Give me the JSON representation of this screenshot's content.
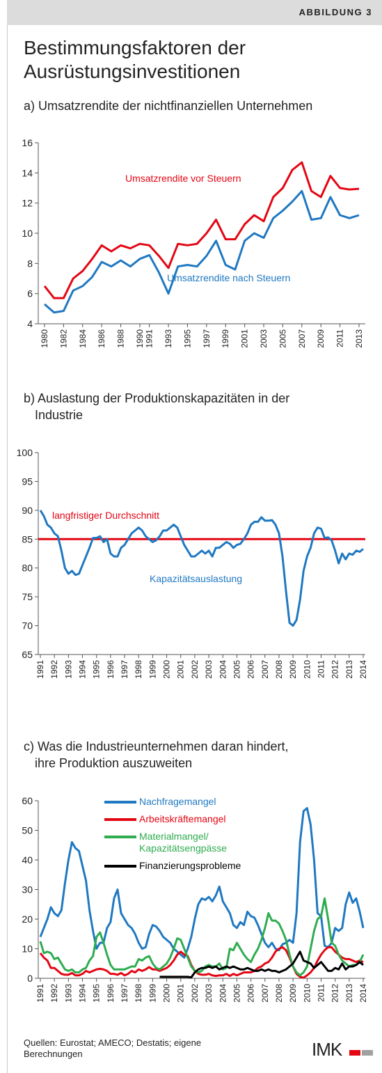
{
  "header": {
    "label": "ABBILDUNG 3",
    "title": "Bestimmungsfaktoren der\nAusrüstungsinvestitionen"
  },
  "chart_data": [
    {
      "type": "line",
      "title": "a) Umsatzrendite der nichtfinanziellen Unternehmen",
      "categories": [
        1980,
        null,
        1982,
        null,
        1984,
        null,
        1986,
        null,
        1988,
        null,
        1990,
        1991,
        null,
        1993,
        null,
        1995,
        null,
        1997,
        null,
        1999,
        null,
        2001,
        null,
        2003,
        null,
        2005,
        null,
        2007,
        null,
        2009,
        null,
        2011,
        null,
        2013
      ],
      "series": [
        {
          "name": "Umsatzrendite vor Steuern",
          "color": "#e30613",
          "values": [
            6.5,
            5.7,
            5.7,
            7.0,
            7.5,
            8.3,
            9.2,
            8.8,
            9.2,
            9.0,
            9.3,
            9.2,
            8.5,
            7.7,
            9.3,
            9.2,
            9.3,
            10.0,
            10.9,
            9.6,
            9.6,
            10.6,
            11.2,
            10.8,
            12.4,
            13.0,
            14.2,
            14.7,
            12.8,
            12.4,
            13.8,
            13.0,
            12.9,
            12.95
          ]
        },
        {
          "name": "Umsatzrendite nach Steuern",
          "color": "#1f78c1",
          "values": [
            5.3,
            4.75,
            4.85,
            6.2,
            6.5,
            7.1,
            8.1,
            7.8,
            8.2,
            7.8,
            8.3,
            8.55,
            7.4,
            6.0,
            7.8,
            7.9,
            7.8,
            8.5,
            9.5,
            7.9,
            7.6,
            9.5,
            10.0,
            9.7,
            11.0,
            11.5,
            12.1,
            12.8,
            10.9,
            11.0,
            12.4,
            11.2,
            11.0,
            11.2
          ]
        }
      ],
      "ylim": [
        4,
        16
      ],
      "yticks": [
        4,
        6,
        8,
        10,
        12,
        14,
        16
      ],
      "grid": false
    },
    {
      "type": "line",
      "title": "b) Auslastung der Produktionskapazitäten in der\nIndustrie",
      "categories": [
        1991,
        null,
        null,
        null,
        1992,
        null,
        null,
        null,
        1993,
        null,
        null,
        null,
        1994,
        null,
        null,
        null,
        1995,
        null,
        null,
        null,
        1996,
        null,
        null,
        null,
        1997,
        null,
        null,
        null,
        1998,
        null,
        null,
        null,
        1999,
        null,
        null,
        null,
        2000,
        null,
        null,
        null,
        2001,
        null,
        null,
        null,
        2002,
        null,
        null,
        null,
        2003,
        null,
        null,
        null,
        2004,
        null,
        null,
        null,
        2005,
        null,
        null,
        null,
        2006,
        null,
        null,
        null,
        2007,
        null,
        null,
        null,
        2008,
        null,
        null,
        null,
        2009,
        null,
        null,
        null,
        2010,
        null,
        null,
        null,
        2011,
        null,
        null,
        null,
        2012,
        null,
        null,
        null,
        2013,
        null,
        null,
        null,
        2014
      ],
      "series": [
        {
          "name": "Kapazitätsauslastung",
          "color": "#1f78c1",
          "values": [
            90,
            89,
            87.5,
            87,
            86,
            85.5,
            83,
            80,
            79,
            79.5,
            78.8,
            79,
            80.5,
            82,
            83.5,
            85.2,
            85.2,
            85.5,
            84.5,
            85,
            82.5,
            82,
            82,
            83.5,
            84,
            85,
            86,
            86.5,
            87,
            86.5,
            85.5,
            85,
            84.5,
            84.8,
            85.5,
            86.5,
            86.5,
            87,
            87.5,
            87,
            85.5,
            84,
            83,
            82,
            82,
            82.5,
            83,
            82.5,
            83,
            82,
            83.5,
            83.5,
            84,
            84.5,
            84.2,
            83.5,
            84,
            84.2,
            85,
            86,
            87.5,
            88,
            88,
            88.8,
            88.2,
            88.2,
            88.3,
            87.5,
            86,
            82,
            76,
            70.5,
            70,
            71,
            74.5,
            79.5,
            82,
            83.5,
            86,
            87,
            86.8,
            85.2,
            85.3,
            84.8,
            83,
            80.8,
            82.5,
            81.5,
            82.5,
            82.3,
            83,
            82.8,
            83.3
          ]
        }
      ],
      "reference_line": {
        "name": "langfristiger Durchschnitt",
        "value": 85,
        "color": "#e30613"
      },
      "ylim": [
        65,
        100
      ],
      "yticks": [
        65,
        70,
        75,
        80,
        85,
        90,
        95,
        100
      ],
      "grid": false
    },
    {
      "type": "line",
      "title": "c) Was die Industrieunternehmen daran hindert,\nihre Produktion auszuweiten",
      "categories": [
        1991,
        null,
        null,
        null,
        1992,
        null,
        null,
        null,
        1993,
        null,
        null,
        null,
        1994,
        null,
        null,
        null,
        1995,
        null,
        null,
        null,
        1996,
        null,
        null,
        null,
        1997,
        null,
        null,
        null,
        1998,
        null,
        null,
        null,
        1999,
        null,
        null,
        null,
        2000,
        null,
        null,
        null,
        2001,
        null,
        null,
        null,
        2002,
        null,
        null,
        null,
        2003,
        null,
        null,
        null,
        2004,
        null,
        null,
        null,
        2005,
        null,
        null,
        null,
        2006,
        null,
        null,
        null,
        2007,
        null,
        null,
        null,
        2008,
        null,
        null,
        null,
        2009,
        null,
        null,
        null,
        2010,
        null,
        null,
        null,
        2011,
        null,
        null,
        null,
        2012,
        null,
        null,
        null,
        2013,
        null,
        null,
        null,
        2014
      ],
      "series": [
        {
          "name": "Nachfragemangel",
          "color": "#1f78c1",
          "values": [
            14,
            17,
            20,
            24,
            22,
            21,
            23,
            32,
            40,
            46,
            44,
            43,
            38,
            33,
            23,
            16,
            10,
            12,
            12,
            17,
            19,
            27,
            30,
            22,
            20,
            18,
            17,
            15,
            12,
            10,
            10.5,
            15,
            18,
            17.5,
            16,
            14,
            13,
            12,
            10,
            9,
            8,
            7,
            10,
            14,
            20,
            25,
            27,
            26.5,
            27.5,
            26,
            28,
            31,
            26,
            24,
            22,
            18,
            17,
            19,
            18,
            22.5,
            21,
            20.5,
            18,
            15,
            12,
            10.5,
            12,
            10,
            9.5,
            11.5,
            12,
            13,
            12,
            22,
            46,
            56.5,
            57.5,
            52,
            40,
            22,
            21,
            11,
            10.5,
            12,
            17,
            16,
            17,
            25,
            29,
            25.5,
            27,
            22.5,
            17
          ]
        },
        {
          "name": "Arbeitskräftemangel",
          "color": "#e30613",
          "values": [
            8.5,
            7,
            6,
            3.5,
            3.5,
            2.5,
            1.5,
            1.2,
            1.2,
            1.8,
            1,
            1,
            1.5,
            2.5,
            2,
            2.5,
            3,
            3.2,
            3,
            2.5,
            1.5,
            1.5,
            1.2,
            1.8,
            1,
            1.5,
            2.5,
            2,
            3,
            2.5,
            3,
            3.8,
            3,
            3,
            2.5,
            3,
            3.5,
            4.5,
            6,
            8,
            9,
            8,
            7.5,
            4.5,
            2.5,
            1.5,
            1.2,
            1.2,
            1.5,
            1,
            0.8,
            1,
            1,
            1.5,
            0.8,
            1.5,
            1,
            1.5,
            2,
            2,
            2,
            2.5,
            3.5,
            4,
            5,
            5.5,
            7,
            9,
            10,
            10.5,
            9.5,
            7,
            4,
            1.5,
            0.5,
            0.2,
            1,
            2,
            3.5,
            6,
            8,
            9.5,
            10.5,
            10.5,
            9,
            8,
            7,
            6.5,
            6.5,
            6,
            5.5,
            6,
            5.5
          ]
        },
        {
          "name": "Materialmangel/\nKapazitätsengpässe",
          "color": "#2eac4f",
          "values": [
            12.5,
            8.5,
            9,
            8.5,
            6.5,
            7,
            5,
            3,
            2.5,
            3,
            2,
            2,
            3,
            3.5,
            6,
            7.5,
            14,
            15.5,
            12,
            8,
            4.5,
            3,
            3,
            3,
            3,
            3.5,
            4,
            4,
            6.5,
            6,
            7,
            7.5,
            5,
            3.5,
            3,
            4,
            5,
            7,
            10,
            13.5,
            13,
            10,
            7,
            4,
            2.5,
            2,
            2.5,
            4,
            4.5,
            4,
            4,
            5,
            3,
            3.5,
            10,
            9.5,
            12,
            10,
            8,
            6.5,
            5.5,
            8,
            10,
            13,
            17,
            22,
            19.5,
            19.5,
            18.5,
            16,
            13,
            8,
            4,
            2,
            1,
            2,
            4,
            10,
            16,
            20,
            21,
            27,
            20,
            12,
            11,
            8,
            6,
            5,
            4,
            4.5,
            4.5,
            5.5,
            8
          ]
        },
        {
          "name": "Finanzierungsprobleme",
          "color": "#000000",
          "values": [
            null,
            null,
            null,
            null,
            null,
            null,
            null,
            null,
            null,
            null,
            null,
            null,
            null,
            null,
            null,
            null,
            null,
            null,
            null,
            null,
            null,
            null,
            null,
            null,
            null,
            null,
            null,
            null,
            null,
            null,
            null,
            null,
            null,
            null,
            0.5,
            0.5,
            0.5,
            0.5,
            0.5,
            0.5,
            0.5,
            0.5,
            0.5,
            0.3,
            2,
            3,
            3.5,
            3.5,
            4,
            3.5,
            4,
            3,
            3.5,
            4,
            3.5,
            4,
            3.5,
            3,
            3,
            3.5,
            3,
            2.5,
            2.5,
            3,
            2.5,
            3,
            2.5,
            2.5,
            2,
            2.5,
            3,
            4,
            5,
            7,
            9,
            6,
            5.5,
            5,
            3.5,
            4.5,
            5.5,
            4,
            2.5,
            2.5,
            3.5,
            3,
            5,
            3,
            4,
            4,
            4.5,
            5.5,
            4.5
          ]
        }
      ],
      "legend": "top",
      "ylim": [
        0,
        60
      ],
      "yticks": [
        0,
        10,
        20,
        30,
        40,
        50,
        60
      ],
      "grid": false
    }
  ],
  "footer": {
    "source": "Quellen: Eurostat; AMECO; Destatis; eigene\nBerechnungen",
    "logo": "IMK"
  }
}
